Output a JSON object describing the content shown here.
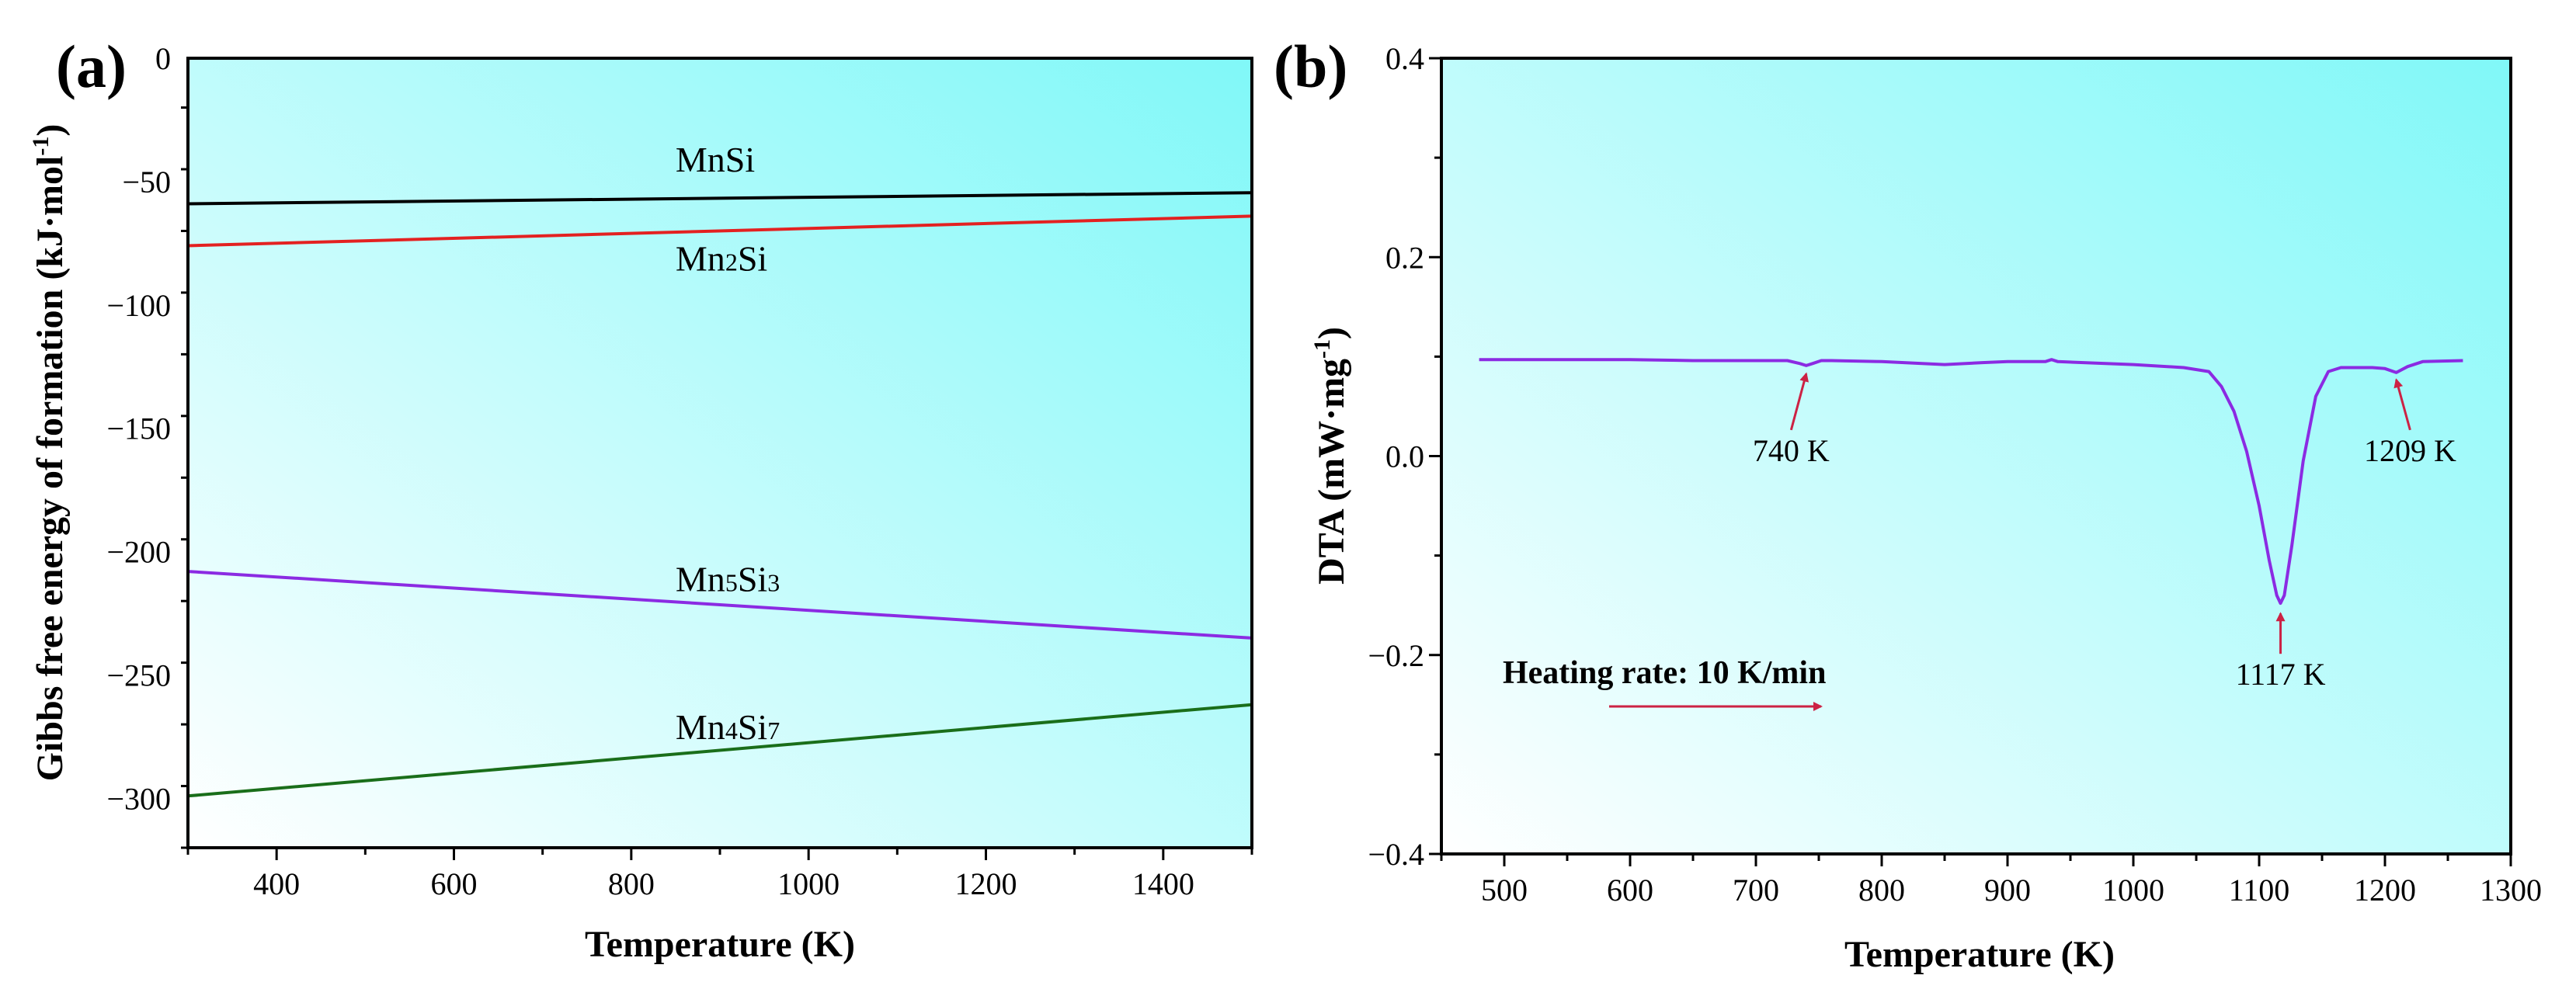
{
  "chart_data": [
    {
      "type": "line",
      "panel_label": "(a)",
      "xlabel": "Temperature (K)",
      "ylabel": "Gibbs free energy of formation (kJ·mol-1)",
      "ylabel_main": "Gibbs free energy of formation (kJ·mol",
      "ylabel_sup": "-1",
      "ylabel_close": ")",
      "xlim": [
        300,
        1500
      ],
      "ylim": [
        -320,
        0
      ],
      "xticks": [
        400,
        600,
        800,
        1000,
        1200,
        1400
      ],
      "yticks": [
        0,
        -50,
        -100,
        -150,
        -200,
        -250,
        -300
      ],
      "background": {
        "start": "#ffffff",
        "end": "#80f8f8"
      },
      "series": [
        {
          "name": "MnSi",
          "label_parts": [
            [
              "MnSi",
              false
            ]
          ],
          "color": "#000000",
          "x": [
            300,
            1500
          ],
          "y": [
            -59,
            -54.5
          ],
          "label_at": [
            850,
            -46
          ]
        },
        {
          "name": "Mn2Si",
          "label_parts": [
            [
              "Mn",
              false
            ],
            [
              "2",
              true
            ],
            [
              "Si",
              false
            ]
          ],
          "color": "#e32121",
          "x": [
            300,
            1500
          ],
          "y": [
            -76,
            -64
          ],
          "label_at": [
            850,
            -86
          ]
        },
        {
          "name": "Mn5Si3",
          "label_parts": [
            [
              "Mn",
              false
            ],
            [
              "5",
              true
            ],
            [
              "Si",
              false
            ],
            [
              "3",
              true
            ]
          ],
          "color": "#8b2be2",
          "x": [
            300,
            1500
          ],
          "y": [
            -208,
            -235
          ],
          "label_at": [
            850,
            -216
          ]
        },
        {
          "name": "Mn4Si7",
          "label_parts": [
            [
              "Mn",
              false
            ],
            [
              "4",
              true
            ],
            [
              "Si",
              false
            ],
            [
              "7",
              true
            ]
          ],
          "color": "#1a6e1a",
          "x": [
            300,
            1500
          ],
          "y": [
            -299,
            -262
          ],
          "label_at": [
            850,
            -276
          ]
        }
      ]
    },
    {
      "type": "line",
      "panel_label": "(b)",
      "xlabel": "Temperature (K)",
      "ylabel": "DTA (mW·mg-1)",
      "ylabel_main": "DTA (mW·mg",
      "ylabel_sup": "-1",
      "ylabel_close": ")",
      "xlim": [
        450,
        1300
      ],
      "ylim": [
        -0.4,
        0.4
      ],
      "xticks": [
        500,
        600,
        700,
        800,
        900,
        1000,
        1100,
        1200,
        1300
      ],
      "yticks": [
        0.4,
        0.2,
        0.0,
        -0.2,
        -0.4
      ],
      "ytick_labels": [
        "0.4",
        "0.2",
        "0.0",
        "−0.2",
        "−0.4"
      ],
      "background": {
        "start": "#ffffff",
        "end": "#80f8f8"
      },
      "series": [
        {
          "name": "DTA",
          "color": "#8b2be2",
          "x": [
            480,
            550,
            600,
            650,
            700,
            725,
            735,
            740,
            745,
            752,
            760,
            800,
            850,
            880,
            900,
            930,
            935,
            940,
            1000,
            1040,
            1060,
            1070,
            1080,
            1090,
            1100,
            1108,
            1114,
            1117,
            1120,
            1126,
            1135,
            1145,
            1155,
            1165,
            1190,
            1200,
            1209,
            1218,
            1230,
            1262
          ],
          "y": [
            0.097,
            0.097,
            0.097,
            0.096,
            0.096,
            0.096,
            0.093,
            0.091,
            0.093,
            0.096,
            0.096,
            0.095,
            0.092,
            0.094,
            0.095,
            0.095,
            0.097,
            0.095,
            0.092,
            0.089,
            0.085,
            0.07,
            0.045,
            0.005,
            -0.05,
            -0.105,
            -0.14,
            -0.148,
            -0.14,
            -0.09,
            -0.005,
            0.06,
            0.085,
            0.089,
            0.089,
            0.088,
            0.084,
            0.09,
            0.095,
            0.096
          ]
        }
      ],
      "annotations": [
        {
          "text": "740 K",
          "point": [
            740,
            0.089
          ],
          "label_at": [
            728,
            -0.005
          ]
        },
        {
          "text": "1117 K",
          "point": [
            1117,
            -0.152
          ],
          "label_at": [
            1117,
            -0.23
          ]
        },
        {
          "text": "1209 K",
          "point": [
            1209,
            0.083
          ],
          "label_at": [
            1220,
            -0.005
          ]
        }
      ],
      "rate_text": "Heating rate: 10 K/min"
    }
  ]
}
